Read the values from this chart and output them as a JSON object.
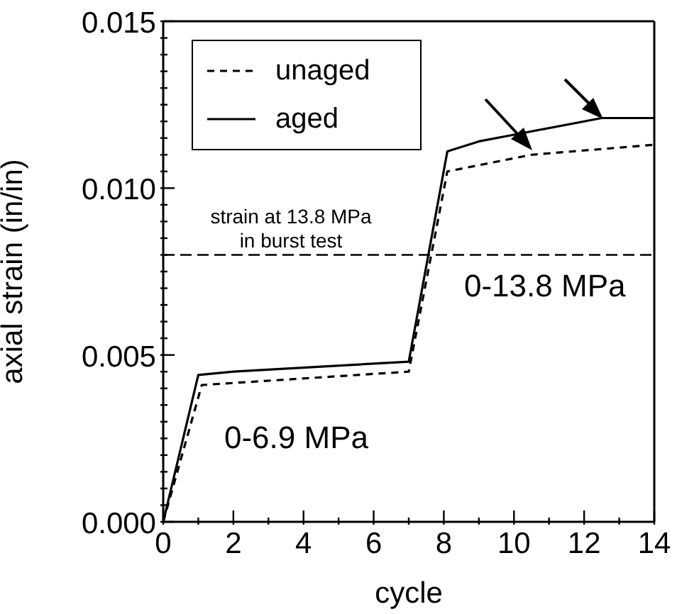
{
  "chart_data": {
    "type": "line",
    "xlabel": "cycle",
    "ylabel": "axial strain (in/in)",
    "xlim": [
      0,
      14
    ],
    "ylim": [
      0,
      0.015
    ],
    "xticks": [
      0,
      {
        "value": 1,
        "label": null
      },
      2,
      {
        "value": 3,
        "label": null
      },
      4,
      {
        "value": 5,
        "label": null
      },
      6,
      {
        "value": 7,
        "label": null
      },
      8,
      {
        "value": 9,
        "label": null
      },
      10,
      {
        "value": 11,
        "label": null
      },
      12,
      {
        "value": 13,
        "label": null
      },
      14
    ],
    "yticks": [
      {
        "value": 0,
        "label": "0.000"
      },
      {
        "value": 0.0005,
        "label": null
      },
      {
        "value": 0.001,
        "label": null
      },
      {
        "value": 0.0015,
        "label": null
      },
      {
        "value": 0.002,
        "label": null
      },
      {
        "value": 0.0025,
        "label": null
      },
      {
        "value": 0.003,
        "label": null
      },
      {
        "value": 0.0035,
        "label": null
      },
      {
        "value": 0.004,
        "label": null
      },
      {
        "value": 0.0045,
        "label": null
      },
      {
        "value": 0.005,
        "label": "0.005"
      },
      {
        "value": 0.0055,
        "label": null
      },
      {
        "value": 0.006,
        "label": null
      },
      {
        "value": 0.0065,
        "label": null
      },
      {
        "value": 0.007,
        "label": null
      },
      {
        "value": 0.0075,
        "label": null
      },
      {
        "value": 0.008,
        "label": null
      },
      {
        "value": 0.0085,
        "label": null
      },
      {
        "value": 0.009,
        "label": null
      },
      {
        "value": 0.0095,
        "label": null
      },
      {
        "value": 0.01,
        "label": "0.010"
      },
      {
        "value": 0.0105,
        "label": null
      },
      {
        "value": 0.011,
        "label": null
      },
      {
        "value": 0.0115,
        "label": null
      },
      {
        "value": 0.012,
        "label": null
      },
      {
        "value": 0.0125,
        "label": null
      },
      {
        "value": 0.013,
        "label": null
      },
      {
        "value": 0.0135,
        "label": null
      },
      {
        "value": 0.014,
        "label": null
      },
      {
        "value": 0.0145,
        "label": null
      },
      {
        "value": 0.015,
        "label": "0.015"
      }
    ],
    "grid": false,
    "legend": "top left",
    "marker": "none",
    "series": [
      {
        "name": "unaged",
        "color": "#000000",
        "line_style": "dashed",
        "x": [
          0,
          1.1,
          7,
          8.1,
          10.5,
          14
        ],
        "values": [
          0,
          0.0041,
          0.0045,
          0.0105,
          0.011,
          0.0113
        ]
      },
      {
        "name": "aged",
        "color": "#000000",
        "line_style": "solid",
        "x": [
          0,
          1,
          2,
          7,
          8.1,
          9,
          10,
          12.5,
          14
        ],
        "values": [
          0,
          0.0044,
          0.0045,
          0.0048,
          0.0111,
          0.0114,
          0.0116,
          0.0121,
          0.0121
        ]
      }
    ],
    "ref_lines": [
      {
        "axis": "y",
        "value": 0.008,
        "label": "strain at 13.8 MPa\nin burst test",
        "line_style": "dashed",
        "color": "#000000"
      }
    ],
    "annotations": [
      "0-6.9 MPa",
      "0-13.8 MPa"
    ]
  }
}
